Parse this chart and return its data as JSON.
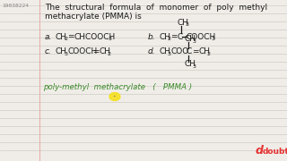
{
  "bg_color": "#f0ede8",
  "question_id": "19038224",
  "title_line1": "The  structural  formula  of  monomer  of  poly  methyl",
  "title_line2": "methacrylate (PMMA) is",
  "handwritten": "poly-methyl  methacrylate   (   PMMA )",
  "handwritten_color": "#3a8a2a",
  "watermark": "doubtnut",
  "text_color": "#1a1a1a",
  "line_color": "#d0ccc5",
  "id_color": "#888888"
}
